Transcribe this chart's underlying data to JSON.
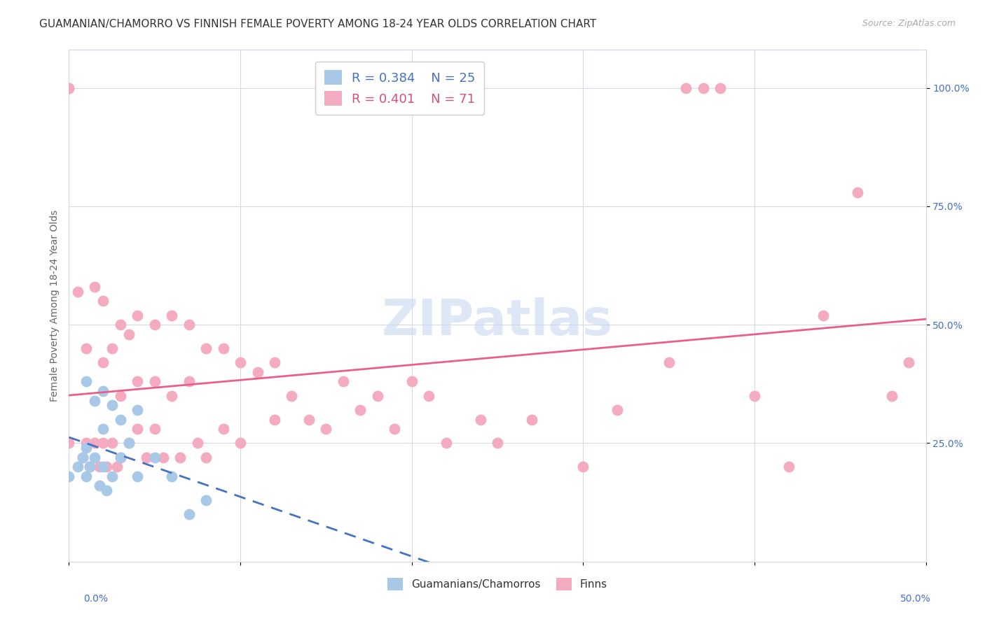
{
  "title": "GUAMANIAN/CHAMORRO VS FINNISH FEMALE POVERTY AMONG 18-24 YEAR OLDS CORRELATION CHART",
  "source": "Source: ZipAtlas.com",
  "ylabel": "Female Poverty Among 18-24 Year Olds",
  "xlim": [
    0.0,
    0.5
  ],
  "ylim": [
    0.0,
    1.08
  ],
  "guam_R": 0.384,
  "guam_N": 25,
  "finn_R": 0.401,
  "finn_N": 71,
  "guam_color": "#a8c8e8",
  "finn_color": "#f4aabf",
  "guam_line_color": "#4472c4",
  "finn_line_color": "#e8608a",
  "watermark_color": "#c8d8f0",
  "background_color": "#ffffff",
  "grid_color": "#d0d8e8",
  "guam_scatter_x": [
    0.0,
    0.005,
    0.008,
    0.01,
    0.01,
    0.01,
    0.012,
    0.015,
    0.015,
    0.018,
    0.02,
    0.02,
    0.02,
    0.022,
    0.025,
    0.025,
    0.03,
    0.03,
    0.035,
    0.04,
    0.04,
    0.05,
    0.06,
    0.07,
    0.08
  ],
  "guam_scatter_y": [
    0.18,
    0.2,
    0.22,
    0.38,
    0.24,
    0.18,
    0.2,
    0.34,
    0.22,
    0.16,
    0.36,
    0.28,
    0.2,
    0.15,
    0.33,
    0.18,
    0.3,
    0.22,
    0.25,
    0.32,
    0.18,
    0.22,
    0.18,
    0.1,
    0.13
  ],
  "finn_scatter_x": [
    0.0,
    0.0,
    0.0,
    0.005,
    0.008,
    0.01,
    0.01,
    0.012,
    0.015,
    0.015,
    0.018,
    0.02,
    0.02,
    0.02,
    0.022,
    0.025,
    0.025,
    0.028,
    0.03,
    0.03,
    0.03,
    0.035,
    0.035,
    0.04,
    0.04,
    0.04,
    0.045,
    0.05,
    0.05,
    0.05,
    0.055,
    0.06,
    0.06,
    0.065,
    0.07,
    0.07,
    0.075,
    0.08,
    0.08,
    0.09,
    0.09,
    0.1,
    0.1,
    0.11,
    0.12,
    0.12,
    0.13,
    0.14,
    0.15,
    0.16,
    0.17,
    0.18,
    0.19,
    0.2,
    0.21,
    0.22,
    0.24,
    0.25,
    0.27,
    0.3,
    0.32,
    0.35,
    0.36,
    0.37,
    0.38,
    0.4,
    0.42,
    0.44,
    0.46,
    0.48,
    0.49
  ],
  "finn_scatter_y": [
    1.0,
    1.0,
    0.25,
    0.57,
    0.22,
    0.45,
    0.25,
    0.2,
    0.58,
    0.25,
    0.2,
    0.55,
    0.42,
    0.25,
    0.2,
    0.45,
    0.25,
    0.2,
    0.5,
    0.35,
    0.22,
    0.48,
    0.25,
    0.52,
    0.38,
    0.28,
    0.22,
    0.5,
    0.38,
    0.28,
    0.22,
    0.52,
    0.35,
    0.22,
    0.5,
    0.38,
    0.25,
    0.45,
    0.22,
    0.45,
    0.28,
    0.42,
    0.25,
    0.4,
    0.42,
    0.3,
    0.35,
    0.3,
    0.28,
    0.38,
    0.32,
    0.35,
    0.28,
    0.38,
    0.35,
    0.25,
    0.3,
    0.25,
    0.3,
    0.2,
    0.32,
    0.42,
    1.0,
    1.0,
    1.0,
    0.35,
    0.2,
    0.52,
    0.78,
    0.35,
    0.42
  ],
  "title_fontsize": 11,
  "axis_label_fontsize": 10,
  "tick_fontsize": 10,
  "legend_fontsize": 13
}
